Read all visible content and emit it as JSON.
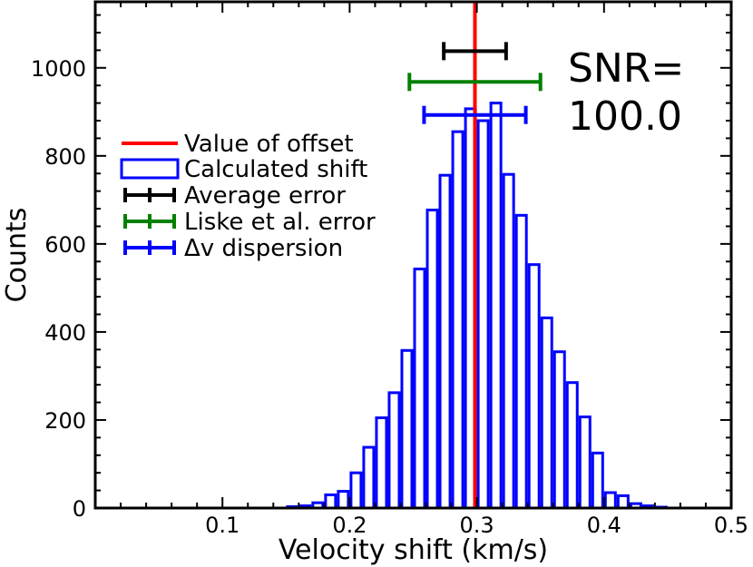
{
  "chart_data": {
    "type": "bar",
    "xlabel": "Velocity shift (km/s)",
    "ylabel": "Counts",
    "xlim": [
      0,
      0.5
    ],
    "ylim": [
      0,
      1150
    ],
    "xticks": [
      0.1,
      0.2,
      0.3,
      0.4,
      0.5
    ],
    "xtick_labels": [
      "0.1",
      "0.2",
      "0.3",
      "0.4",
      "0.5"
    ],
    "yticks": [
      0,
      200,
      400,
      600,
      800,
      1000
    ],
    "ytick_labels": [
      "0",
      "200",
      "400",
      "600",
      "800",
      "1000"
    ],
    "bin_width": 0.01,
    "histogram": {
      "bin_starts": [
        0.15,
        0.16,
        0.17,
        0.18,
        0.19,
        0.2,
        0.21,
        0.22,
        0.23,
        0.24,
        0.25,
        0.26,
        0.27,
        0.28,
        0.29,
        0.3,
        0.31,
        0.32,
        0.33,
        0.34,
        0.35,
        0.36,
        0.37,
        0.38,
        0.39,
        0.4,
        0.41,
        0.42,
        0.43,
        0.44
      ],
      "counts": [
        3,
        5,
        12,
        30,
        38,
        80,
        138,
        205,
        262,
        358,
        543,
        677,
        756,
        855,
        907,
        880,
        920,
        758,
        665,
        553,
        432,
        355,
        285,
        207,
        125,
        35,
        28,
        10,
        5,
        2
      ],
      "color": "#0000ff"
    },
    "offset_line": {
      "x": 0.2985,
      "color": "#ff0000"
    },
    "error_bars": [
      {
        "key": "average",
        "center": 0.2985,
        "halfwidth": 0.0245,
        "y": 1038,
        "color": "#000000"
      },
      {
        "key": "liske",
        "center": 0.2985,
        "halfwidth": 0.0515,
        "y": 968,
        "color": "#008000"
      },
      {
        "key": "dispersion",
        "center": 0.2985,
        "halfwidth": 0.04,
        "y": 893,
        "color": "#0000ff"
      }
    ],
    "legend": {
      "placement": "center-left",
      "entries": [
        {
          "label": "Value of offset",
          "kind": "line",
          "color": "#ff0000"
        },
        {
          "label": "Calculated shift",
          "kind": "box",
          "color": "#0000ff"
        },
        {
          "label": "Average error",
          "kind": "errorbar",
          "color": "#000000"
        },
        {
          "label": "Liske et al. error",
          "kind": "errorbar",
          "color": "#008000"
        },
        {
          "label": "Δv dispersion",
          "kind": "errorbar",
          "color": "#0000ff"
        }
      ]
    },
    "annotation": {
      "line1": "SNR=",
      "line2": "100.0"
    }
  }
}
